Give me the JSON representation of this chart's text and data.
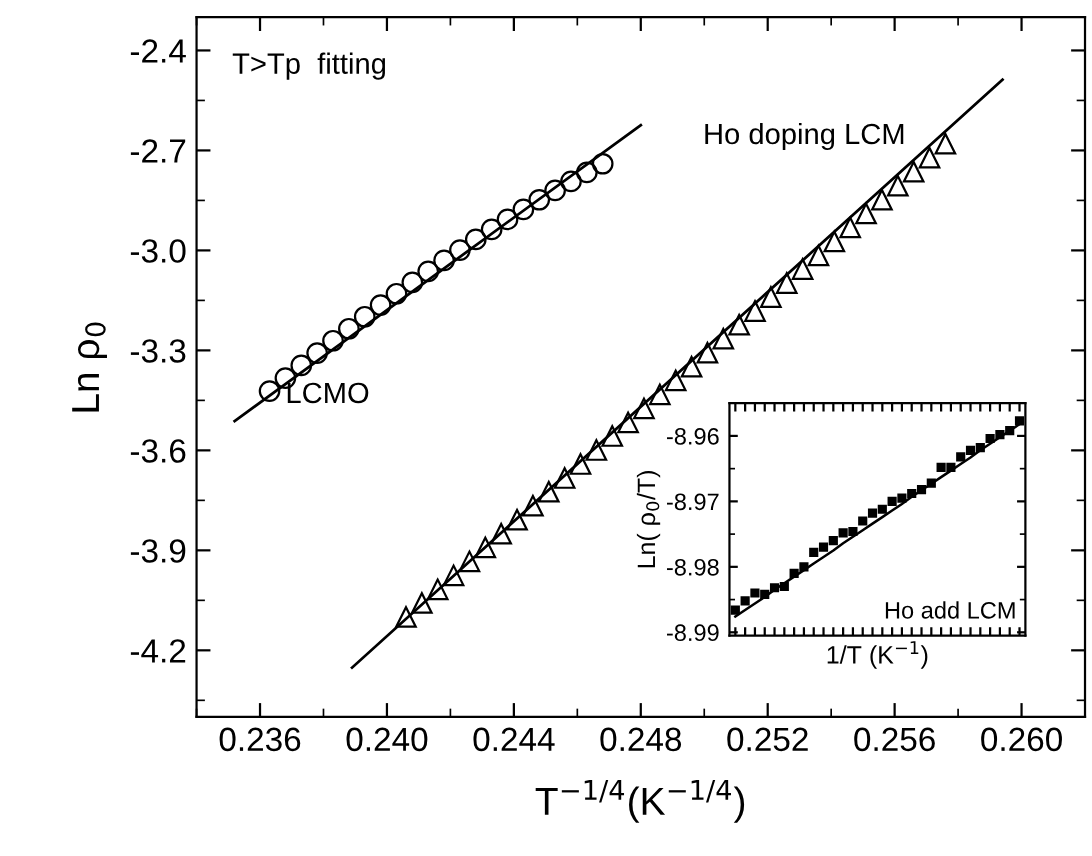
{
  "chart_data": [
    {
      "type": "scatter",
      "xlabel": "T$^{−1/4}$(K$^{−1/4}$)",
      "ylabel": "Ln ρ$_{0}$",
      "annotations": [
        "T>Tp  fitting"
      ],
      "xlim": [
        0.234,
        0.262
      ],
      "xticks": [
        {
          "value": 0.236,
          "label": "0.236"
        },
        {
          "value": 0.24,
          "label": "0.240"
        },
        {
          "value": 0.244,
          "label": "0.244"
        },
        {
          "value": 0.248,
          "label": "0.248"
        },
        {
          "value": 0.252,
          "label": "0.252"
        },
        {
          "value": 0.256,
          "label": "0.256"
        },
        {
          "value": 0.26,
          "label": "0.260"
        }
      ],
      "ylim": [
        -4.4,
        -2.3
      ],
      "yticks": [
        -2.4,
        -2.7,
        {
          "value": -3.0,
          "label": "-3.0"
        },
        -3.3,
        -3.6,
        -3.9,
        -4.2
      ],
      "legend": false,
      "series": [
        {
          "name": "LCMO",
          "color": "#000000",
          "marker": "circle",
          "x": [
            0.2363,
            0.2368,
            0.2373,
            0.2378,
            0.2383,
            0.2388,
            0.2393,
            0.2398,
            0.2403,
            0.2408,
            0.2413,
            0.2418,
            0.2423,
            0.2428,
            0.2433,
            0.2438,
            0.2443,
            0.2448,
            0.2453,
            0.2458,
            0.2463,
            0.2468
          ],
          "values": [
            -3.422,
            -3.383,
            -3.345,
            -3.308,
            -3.271,
            -3.235,
            -3.199,
            -3.164,
            -3.13,
            -3.096,
            -3.063,
            -3.03,
            -2.999,
            -2.967,
            -2.937,
            -2.907,
            -2.877,
            -2.848,
            -2.82,
            -2.793,
            -2.766,
            -2.74
          ]
        },
        {
          "name": "Ho doping LCM",
          "color": "#000000",
          "marker": "triangle",
          "x": [
            0.2406,
            0.2411,
            0.2416,
            0.2421,
            0.2426,
            0.2431,
            0.2436,
            0.2441,
            0.2446,
            0.2451,
            0.2456,
            0.2461,
            0.2466,
            0.2471,
            0.2476,
            0.2481,
            0.2486,
            0.2491,
            0.2496,
            0.2501,
            0.2506,
            0.2511,
            0.2516,
            0.2521,
            0.2526,
            0.2531,
            0.2536,
            0.2541,
            0.2546,
            0.2551,
            0.2556,
            0.2561,
            0.2566,
            0.2571,
            0.2576
          ],
          "values": [
            -4.1,
            -4.058,
            -4.017,
            -3.975,
            -3.933,
            -3.891,
            -3.85,
            -3.808,
            -3.766,
            -3.724,
            -3.683,
            -3.641,
            -3.599,
            -3.557,
            -3.516,
            -3.474,
            -3.432,
            -3.39,
            -3.349,
            -3.307,
            -3.265,
            -3.223,
            -3.182,
            -3.14,
            -3.098,
            -3.056,
            -3.015,
            -2.973,
            -2.931,
            -2.889,
            -2.848,
            -2.806,
            -2.764,
            -2.722,
            -2.68
          ]
        },
        {
          "type": "line",
          "color": "#000000",
          "x": [
            0.2352,
            0.248
          ],
          "values": [
            -3.512,
            -2.624
          ]
        },
        {
          "type": "line",
          "color": "#000000",
          "x": [
            0.2389,
            0.2594
          ],
          "values": [
            -4.252,
            -2.488
          ]
        }
      ]
    },
    {
      "type": "scatter",
      "xlabel": "1/T (K$^{−1}$)",
      "ylabel": "Ln( ρ$_{0}$/T)",
      "annotations": [
        "Ho add LCM"
      ],
      "ylim": [
        -8.9905,
        -8.955
      ],
      "yticks": [
        -8.96,
        -8.97,
        -8.98,
        -8.99
      ],
      "tick_labels": "y",
      "legend": false,
      "categories": [
        null,
        null,
        null,
        null,
        null,
        null,
        null,
        null,
        null,
        null,
        null,
        null,
        null,
        null,
        null,
        null,
        null,
        null,
        null,
        null,
        null,
        null,
        null,
        null,
        null,
        null,
        null,
        null,
        null,
        null
      ],
      "series": [
        {
          "color": "#000000",
          "marker": "square",
          "values": [
            -8.9866,
            -8.9852,
            -8.984,
            -8.9842,
            -8.9832,
            -8.983,
            -8.981,
            -8.98,
            -8.9778,
            -8.977,
            -8.976,
            -8.9748,
            -8.9746,
            -8.973,
            -8.9718,
            -8.9712,
            -8.97,
            -8.9695,
            -8.9688,
            -8.9682,
            -8.9672,
            -8.9648,
            -8.9648,
            -8.9632,
            -8.9622,
            -8.9618,
            -8.9604,
            -8.9598,
            -8.9592,
            -8.9577
          ]
        },
        {
          "type": "line",
          "color": "#000000",
          "values": [
            -8.9876,
            -8.9866,
            -8.9856,
            -8.9846,
            -8.9835,
            -8.9825,
            -8.9815,
            -8.9805,
            -8.9795,
            -8.9785,
            -8.9775,
            -8.9764,
            -8.9754,
            -8.9744,
            -8.9734,
            -8.9724,
            -8.9714,
            -8.9704,
            -8.9693,
            -8.9683,
            -8.9673,
            -8.9663,
            -8.9653,
            -8.9643,
            -8.9633,
            -8.9622,
            -8.9612,
            -8.9602,
            -8.9592,
            -8.9582
          ]
        }
      ]
    }
  ]
}
